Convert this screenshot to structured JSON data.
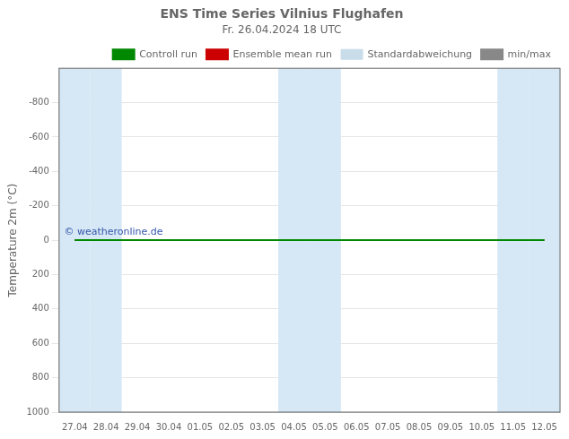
{
  "chart_data": {
    "type": "line",
    "title": "ENS Time Series Vilnius Flughafen",
    "subtitle": "Fr. 26.04.2024 18 UTC",
    "y_label": "Temperature 2m (°C)",
    "categories": [
      "27.04",
      "28.04",
      "29.04",
      "30.04",
      "01.05",
      "02.05",
      "03.05",
      "04.05",
      "05.05",
      "06.05",
      "07.05",
      "08.05",
      "09.05",
      "10.05",
      "11.05",
      "12.05"
    ],
    "series": [
      {
        "name": "min/max",
        "color": "#888888",
        "values": [
          null,
          null,
          null,
          null,
          null,
          null,
          null,
          null,
          null,
          null,
          null,
          null,
          null,
          null,
          null,
          null
        ]
      },
      {
        "name": "Standardabweichung",
        "type": "bar",
        "color": "#c8dcea",
        "values": [
          null,
          null,
          null,
          null,
          null,
          null,
          null,
          null,
          null,
          null,
          null,
          null,
          null,
          null,
          null,
          null
        ]
      },
      {
        "name": "Ensemble mean run",
        "color": "#cc0000",
        "values": [
          0,
          0,
          0,
          0,
          0,
          0,
          0,
          0,
          0,
          0,
          0,
          0,
          0,
          0,
          0,
          0
        ]
      },
      {
        "name": "Controll run",
        "color": "#008800",
        "values": [
          0,
          0,
          0,
          0,
          0,
          0,
          0,
          0,
          0,
          0,
          0,
          0,
          0,
          0,
          0,
          0
        ]
      }
    ],
    "ylim": [
      1000,
      -1000
    ],
    "yticks": [
      -800,
      -600,
      -400,
      -200,
      0,
      200,
      400,
      600,
      800,
      1000
    ],
    "grid": "y",
    "legend": "upper right",
    "annotations": [
      {
        "text": "© weatheronline.de",
        "y": 0,
        "color": "#3355aa"
      }
    ],
    "shaded": {
      "categories": [
        "27.04",
        "28.04",
        "04.05",
        "05.05",
        "11.05",
        "12.05"
      ],
      "color": "#d6e8f5"
    }
  }
}
